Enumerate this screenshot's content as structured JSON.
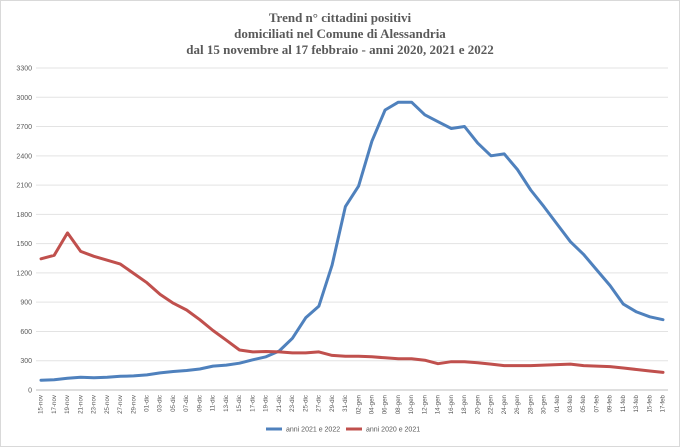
{
  "chart_data": {
    "type": "line",
    "title_lines": [
      "Trend n° cittadini positivi",
      "domiciliati nel Comune di Alessandria",
      "dal 15 novembre al 17 febbraio - anni 2020, 2021 e 2022"
    ],
    "ylim": [
      0,
      3300
    ],
    "yticks": [
      "0",
      "300",
      "600",
      "900",
      "1200",
      "1500",
      "1800",
      "2100",
      "2400",
      "2700",
      "3000",
      "3300"
    ],
    "grid": true,
    "legend_position": "bottom",
    "x": [
      "15-nov",
      "17-nov",
      "19-nov",
      "21-nov",
      "23-nov",
      "25-nov",
      "27-nov",
      "29-nov",
      "01-dic",
      "03-dic",
      "05-dic",
      "07-dic",
      "09-dic",
      "11-dic",
      "13-dic",
      "15-dic",
      "17-dic",
      "19-dic",
      "21-dic",
      "23-dic",
      "25-dic",
      "27-dic",
      "29-dic",
      "31-dic",
      "02-gen",
      "04-gen",
      "06-gen",
      "08-gen",
      "10-gen",
      "12-gen",
      "14-gen",
      "16-gen",
      "18-gen",
      "20-gen",
      "22-gen",
      "24-gen",
      "26-gen",
      "28-gen",
      "30-gen",
      "01-feb",
      "03-feb",
      "05-feb",
      "07-feb",
      "09-feb",
      "11-feb",
      "13-feb",
      "15-feb",
      "17-feb"
    ],
    "series": [
      {
        "name": "anni 2021 e 2022",
        "color": "#4f81bd",
        "values": [
          100,
          105,
          120,
          130,
          125,
          130,
          140,
          145,
          155,
          175,
          190,
          200,
          215,
          245,
          255,
          275,
          310,
          340,
          400,
          530,
          740,
          860,
          1280,
          1880,
          2090,
          2550,
          2870,
          2950,
          2950,
          2820,
          2750,
          2680,
          2700,
          2530,
          2400,
          2420,
          2260,
          2050,
          1880,
          1700,
          1520,
          1390,
          1230,
          1070,
          880,
          800,
          750,
          720
        ]
      },
      {
        "name": "anni 2020 e 2021",
        "color": "#c0504d",
        "values": [
          1345,
          1380,
          1610,
          1420,
          1370,
          1330,
          1290,
          1195,
          1100,
          980,
          890,
          820,
          720,
          610,
          510,
          410,
          390,
          395,
          390,
          380,
          380,
          390,
          355,
          345,
          345,
          340,
          330,
          320,
          320,
          305,
          270,
          290,
          290,
          280,
          265,
          250,
          250,
          250,
          255,
          260,
          265,
          250,
          245,
          240,
          225,
          210,
          195,
          180
        ]
      }
    ]
  }
}
